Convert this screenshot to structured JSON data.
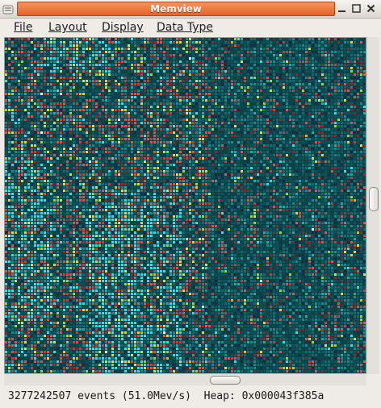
{
  "window": {
    "title": "Memview"
  },
  "menu": {
    "file": "File",
    "layout": "Layout",
    "display": "Display",
    "data_type": "Data Type"
  },
  "icons": {
    "window_menu": "menu-icon",
    "minimize": "minimize-icon",
    "maximize": "maximize-icon",
    "close": "close-icon"
  },
  "status": {
    "text": "3277242507 events (51.0Mev/s)  Heap: 0x000043f385a"
  },
  "memory_view": {
    "palette": [
      "#0c4348",
      "#0f5358",
      "#136b6f",
      "#1a8a8c",
      "#2aa8a6",
      "#35e0e6",
      "#e05050",
      "#c83c3c",
      "#8a2a2a",
      "#e8d33a",
      "#a8d030",
      "#d0e060",
      "#1a2a44",
      "#e8f8f8"
    ]
  }
}
